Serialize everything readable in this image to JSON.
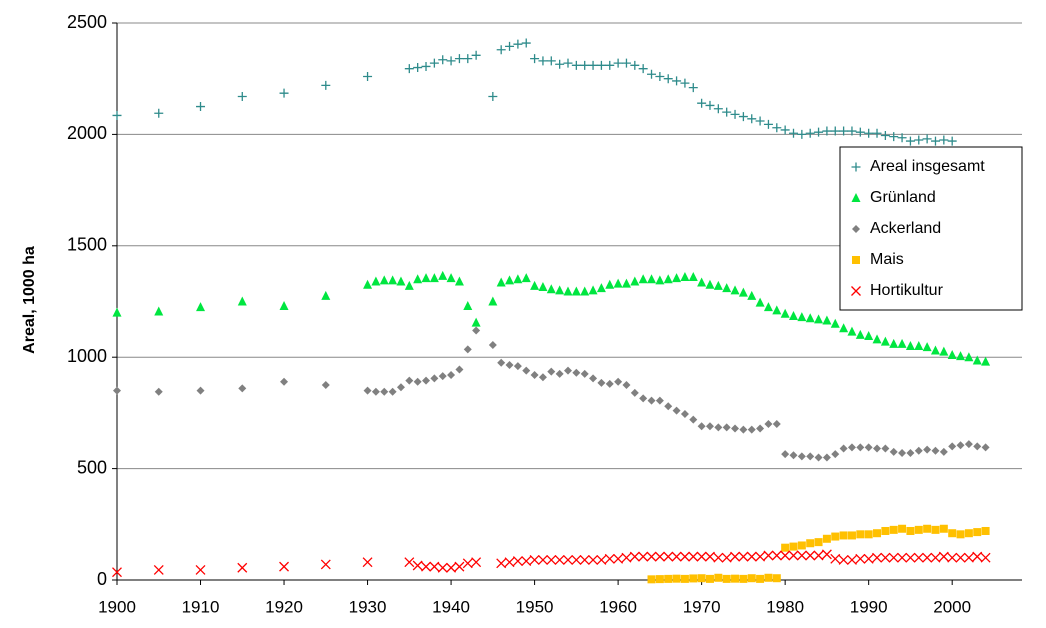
{
  "chart_data": {
    "type": "scatter",
    "y_label": "Areal, 1000 ha",
    "xlim": [
      1900,
      2008
    ],
    "ylim": [
      0,
      2500
    ],
    "xticks": [
      1900,
      1910,
      1920,
      1930,
      1940,
      1950,
      1960,
      1970,
      1980,
      1990,
      2000
    ],
    "yticks": [
      0,
      500,
      1000,
      1500,
      2000,
      2500
    ],
    "grid": true,
    "legend": "right",
    "series": [
      {
        "name": "Areal insgesamt",
        "color": "#2e8b8b",
        "marker": "plus",
        "x": [
          1900,
          1905,
          1910,
          1915,
          1920,
          1925,
          1930,
          1935,
          1936,
          1937,
          1938,
          1939,
          1940,
          1941,
          1942,
          1943,
          1945,
          1946,
          1947,
          1948,
          1949,
          1950,
          1951,
          1952,
          1953,
          1954,
          1955,
          1956,
          1957,
          1958,
          1959,
          1960,
          1961,
          1962,
          1963,
          1964,
          1965,
          1966,
          1967,
          1968,
          1969,
          1970,
          1971,
          1972,
          1973,
          1974,
          1975,
          1976,
          1977,
          1978,
          1979,
          1980,
          1981,
          1982,
          1983,
          1984,
          1985,
          1986,
          1987,
          1988,
          1989,
          1990,
          1991,
          1992,
          1993,
          1994,
          1995,
          1996,
          1997,
          1998,
          1999,
          2000
        ],
        "values": [
          2085,
          2095,
          2125,
          2170,
          2185,
          2220,
          2260,
          2295,
          2300,
          2305,
          2320,
          2335,
          2330,
          2340,
          2340,
          2355,
          2170,
          2380,
          2395,
          2405,
          2410,
          2340,
          2330,
          2330,
          2315,
          2320,
          2310,
          2310,
          2310,
          2310,
          2310,
          2320,
          2320,
          2310,
          2295,
          2270,
          2260,
          2250,
          2240,
          2230,
          2210,
          2140,
          2130,
          2115,
          2100,
          2090,
          2080,
          2070,
          2060,
          2045,
          2030,
          2020,
          2005,
          2000,
          2005,
          2010,
          2015,
          2015,
          2015,
          2015,
          2010,
          2005,
          2005,
          1995,
          1990,
          1985,
          1970,
          1975,
          1980,
          1970,
          1975,
          1970
        ]
      },
      {
        "name": "Grünland",
        "color": "#00e640",
        "marker": "triangle",
        "x": [
          1900,
          1905,
          1910,
          1915,
          1920,
          1925,
          1930,
          1931,
          1932,
          1933,
          1934,
          1935,
          1936,
          1937,
          1938,
          1939,
          1940,
          1941,
          1942,
          1943,
          1945,
          1946,
          1947,
          1948,
          1949,
          1950,
          1951,
          1952,
          1953,
          1954,
          1955,
          1956,
          1957,
          1958,
          1959,
          1960,
          1961,
          1962,
          1963,
          1964,
          1965,
          1966,
          1967,
          1968,
          1969,
          1970,
          1971,
          1972,
          1973,
          1974,
          1975,
          1976,
          1977,
          1978,
          1979,
          1980,
          1981,
          1982,
          1983,
          1984,
          1985,
          1986,
          1987,
          1988,
          1989,
          1990,
          1991,
          1992,
          1993,
          1994,
          1995,
          1996,
          1997,
          1998,
          1999,
          2000,
          2001,
          2002,
          2003,
          2004
        ],
        "values": [
          1200,
          1205,
          1225,
          1250,
          1230,
          1275,
          1325,
          1340,
          1345,
          1345,
          1340,
          1320,
          1350,
          1355,
          1355,
          1365,
          1355,
          1340,
          1230,
          1155,
          1250,
          1335,
          1345,
          1350,
          1355,
          1320,
          1315,
          1305,
          1300,
          1295,
          1295,
          1295,
          1300,
          1310,
          1325,
          1330,
          1330,
          1340,
          1350,
          1350,
          1345,
          1350,
          1355,
          1360,
          1360,
          1335,
          1325,
          1320,
          1310,
          1300,
          1290,
          1275,
          1245,
          1225,
          1210,
          1195,
          1185,
          1180,
          1175,
          1170,
          1165,
          1150,
          1130,
          1115,
          1100,
          1095,
          1080,
          1070,
          1060,
          1060,
          1050,
          1050,
          1045,
          1030,
          1025,
          1010,
          1005,
          1000,
          985,
          980
        ]
      },
      {
        "name": "Ackerland",
        "color": "#808080",
        "marker": "diamond",
        "x": [
          1900,
          1905,
          1910,
          1915,
          1920,
          1925,
          1930,
          1931,
          1932,
          1933,
          1934,
          1935,
          1936,
          1937,
          1938,
          1939,
          1940,
          1941,
          1942,
          1943,
          1945,
          1946,
          1947,
          1948,
          1949,
          1950,
          1951,
          1952,
          1953,
          1954,
          1955,
          1956,
          1957,
          1958,
          1959,
          1960,
          1961,
          1962,
          1963,
          1964,
          1965,
          1966,
          1967,
          1968,
          1969,
          1970,
          1971,
          1972,
          1973,
          1974,
          1975,
          1976,
          1977,
          1978,
          1979,
          1980,
          1981,
          1982,
          1983,
          1984,
          1985,
          1986,
          1987,
          1988,
          1989,
          1990,
          1991,
          1992,
          1993,
          1994,
          1995,
          1996,
          1997,
          1998,
          1999,
          2000,
          2001,
          2002,
          2003,
          2004
        ],
        "values": [
          850,
          845,
          850,
          860,
          890,
          875,
          850,
          845,
          845,
          845,
          865,
          895,
          890,
          895,
          905,
          915,
          920,
          945,
          1035,
          1120,
          1055,
          975,
          965,
          960,
          940,
          920,
          910,
          935,
          925,
          940,
          930,
          925,
          905,
          885,
          880,
          890,
          875,
          840,
          815,
          805,
          805,
          780,
          760,
          745,
          720,
          690,
          690,
          685,
          685,
          680,
          675,
          675,
          680,
          700,
          700,
          565,
          560,
          555,
          555,
          550,
          550,
          565,
          590,
          595,
          595,
          595,
          590,
          590,
          575,
          570,
          570,
          580,
          585,
          580,
          575,
          600,
          605,
          610,
          600,
          595
        ]
      },
      {
        "name": "Mais",
        "color": "#ffc000",
        "marker": "square",
        "x": [
          1964,
          1965,
          1966,
          1967,
          1968,
          1969,
          1970,
          1971,
          1972,
          1973,
          1974,
          1975,
          1976,
          1977,
          1978,
          1979,
          1980,
          1981,
          1982,
          1983,
          1984,
          1985,
          1986,
          1987,
          1988,
          1989,
          1990,
          1991,
          1992,
          1993,
          1994,
          1995,
          1996,
          1997,
          1998,
          1999,
          2000,
          2001,
          2002,
          2003,
          2004
        ],
        "values": [
          3,
          4,
          5,
          6,
          5,
          7,
          8,
          5,
          10,
          5,
          6,
          5,
          8,
          5,
          10,
          8,
          145,
          150,
          155,
          165,
          170,
          185,
          195,
          200,
          200,
          205,
          205,
          210,
          220,
          225,
          230,
          220,
          225,
          230,
          225,
          230,
          210,
          205,
          210,
          215,
          220
        ]
      },
      {
        "name": "Hortikultur",
        "color": "#ff0000",
        "marker": "x",
        "x": [
          1900,
          1905,
          1910,
          1915,
          1920,
          1925,
          1930,
          1935,
          1936,
          1937,
          1938,
          1939,
          1940,
          1941,
          1942,
          1943,
          1946,
          1947,
          1948,
          1949,
          1950,
          1951,
          1952,
          1953,
          1954,
          1955,
          1956,
          1957,
          1958,
          1959,
          1960,
          1961,
          1962,
          1963,
          1964,
          1965,
          1966,
          1967,
          1968,
          1969,
          1970,
          1971,
          1972,
          1973,
          1974,
          1975,
          1976,
          1977,
          1978,
          1979,
          1980,
          1981,
          1982,
          1983,
          1984,
          1985,
          1986,
          1987,
          1988,
          1989,
          1990,
          1991,
          1992,
          1993,
          1994,
          1995,
          1996,
          1997,
          1998,
          1999,
          2000,
          2001,
          2002,
          2003,
          2004
        ],
        "values": [
          35,
          45,
          45,
          55,
          60,
          70,
          80,
          80,
          65,
          60,
          60,
          55,
          55,
          60,
          75,
          80,
          75,
          80,
          85,
          85,
          90,
          90,
          90,
          90,
          90,
          90,
          90,
          90,
          90,
          95,
          95,
          100,
          105,
          105,
          105,
          105,
          105,
          105,
          105,
          105,
          105,
          105,
          100,
          100,
          105,
          105,
          105,
          105,
          110,
          110,
          110,
          110,
          110,
          110,
          110,
          115,
          95,
          90,
          90,
          95,
          95,
          100,
          100,
          100,
          100,
          100,
          100,
          100,
          100,
          105,
          100,
          100,
          100,
          105,
          100
        ]
      }
    ]
  }
}
